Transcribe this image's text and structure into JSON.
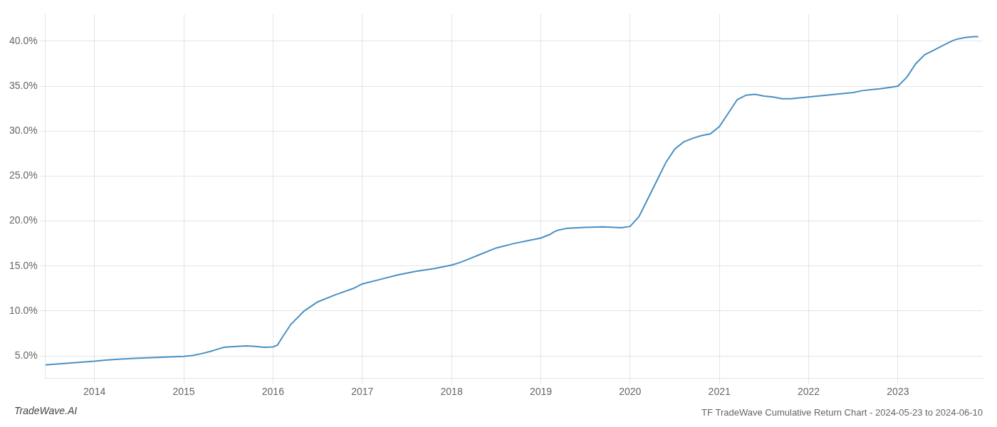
{
  "chart_data": {
    "type": "line",
    "title": "TF TradeWave Cumulative Return Chart - 2024-05-23 to 2024-06-10",
    "annotations": [
      "TradeWave.AI"
    ],
    "color": "#4a90c4",
    "grid": true,
    "x": [
      2013.45,
      2014.0,
      2014.15,
      2014.3,
      2014.5,
      2014.7,
      2014.9,
      2015.0,
      2015.1,
      2015.2,
      2015.3,
      2015.4,
      2015.45,
      2015.5,
      2015.6,
      2015.7,
      2015.8,
      2015.9,
      2016.0,
      2016.05,
      2016.1,
      2016.2,
      2016.35,
      2016.5,
      2016.7,
      2016.9,
      2017.0,
      2017.2,
      2017.4,
      2017.6,
      2017.8,
      2017.9,
      2018.0,
      2018.1,
      2018.2,
      2018.3,
      2018.5,
      2018.7,
      2018.9,
      2019.0,
      2019.1,
      2019.15,
      2019.2,
      2019.3,
      2019.5,
      2019.7,
      2019.9,
      2020.0,
      2020.1,
      2020.2,
      2020.3,
      2020.4,
      2020.5,
      2020.6,
      2020.7,
      2020.8,
      2020.9,
      2021.0,
      2021.1,
      2021.2,
      2021.3,
      2021.4,
      2021.5,
      2021.6,
      2021.7,
      2021.8,
      2021.9,
      2022.0,
      2022.1,
      2022.2,
      2022.3,
      2022.4,
      2022.5,
      2022.6,
      2022.7,
      2022.8,
      2022.9,
      2023.0,
      2023.1,
      2023.2,
      2023.3,
      2023.4,
      2023.5,
      2023.6,
      2023.65,
      2023.75,
      2023.85,
      2023.9
    ],
    "values": [
      4.0,
      4.4,
      4.55,
      4.65,
      4.75,
      4.82,
      4.9,
      4.95,
      5.05,
      5.25,
      5.5,
      5.8,
      5.95,
      6.0,
      6.05,
      6.1,
      6.05,
      5.95,
      6.0,
      6.2,
      7.0,
      8.5,
      10.0,
      11.0,
      11.8,
      12.5,
      13.0,
      13.5,
      14.0,
      14.4,
      14.7,
      14.9,
      15.1,
      15.4,
      15.8,
      16.2,
      17.0,
      17.5,
      17.9,
      18.1,
      18.5,
      18.8,
      19.0,
      19.2,
      19.3,
      19.35,
      19.25,
      19.4,
      20.5,
      22.5,
      24.5,
      26.5,
      28.0,
      28.8,
      29.2,
      29.5,
      29.7,
      30.5,
      32.0,
      33.5,
      34.0,
      34.1,
      33.9,
      33.8,
      33.6,
      33.6,
      33.7,
      33.8,
      33.9,
      34.0,
      34.1,
      34.2,
      34.3,
      34.5,
      34.6,
      34.7,
      34.85,
      35.0,
      36.0,
      37.5,
      38.5,
      39.0,
      39.5,
      40.0,
      40.2,
      40.4,
      40.5,
      40.5
    ],
    "xlim": [
      2013.45,
      2023.95
    ],
    "ylim": [
      2.5,
      43.0
    ],
    "xticks": [
      2014,
      2015,
      2016,
      2017,
      2018,
      2019,
      2020,
      2021,
      2022,
      2023
    ],
    "yticks": [
      {
        "value": 5.0,
        "label": "5.0%"
      },
      {
        "value": 10.0,
        "label": "10.0%"
      },
      {
        "value": 15.0,
        "label": "15.0%"
      },
      {
        "value": 20.0,
        "label": "20.0%"
      },
      {
        "value": 25.0,
        "label": "25.0%"
      },
      {
        "value": 30.0,
        "label": "30.0%"
      },
      {
        "value": 35.0,
        "label": "35.0%"
      },
      {
        "value": 40.0,
        "label": "40.0%"
      }
    ]
  }
}
